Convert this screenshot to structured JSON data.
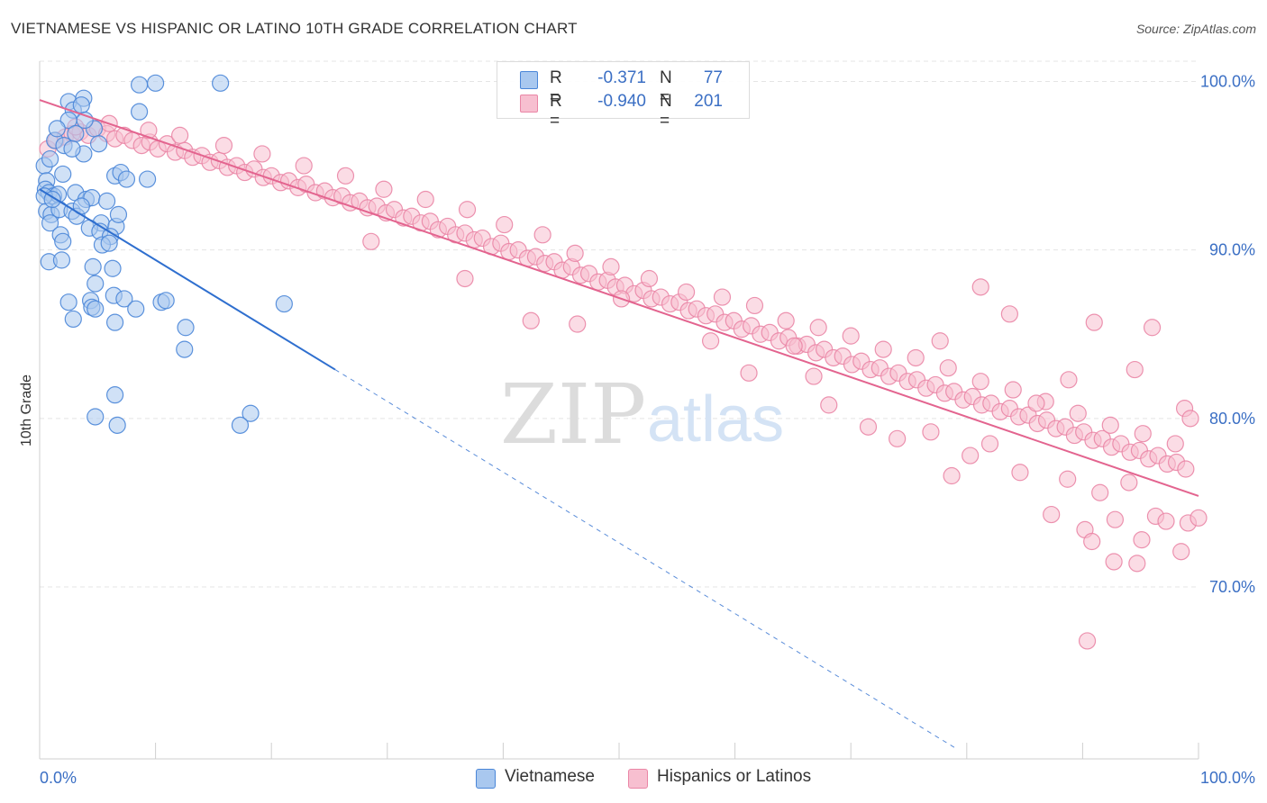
{
  "header": {
    "title": "VIETNAMESE VS HISPANIC OR LATINO 10TH GRADE CORRELATION CHART",
    "source": "Source: ZipAtlas.com"
  },
  "watermark": {
    "zip": "ZIP",
    "atlas": "atlas"
  },
  "colors": {
    "blue_fill": "#a9c8ef",
    "blue_stroke": "#4a86d8",
    "blue_line": "#2f6fcf",
    "pink_fill": "#f7bfd0",
    "pink_stroke": "#ea86a6",
    "pink_line": "#e3648f",
    "tick_label": "#3b6fc4",
    "grid": "#e4e4e4"
  },
  "legend_top": {
    "rows": [
      {
        "r_label": "R =",
        "r_value": "-0.371",
        "n_label": "N =",
        "n_value": "77"
      },
      {
        "r_label": "R =",
        "r_value": "-0.940",
        "n_label": "N =",
        "n_value": "201"
      }
    ]
  },
  "legend_bottom": {
    "items": [
      "Vietnamese",
      "Hispanics or Latinos"
    ]
  },
  "chart_data": {
    "type": "scatter",
    "title": "VIETNAMESE VS HISPANIC OR LATINO 10TH GRADE CORRELATION CHART",
    "xlabel": "",
    "ylabel": "10th Grade",
    "xlim": [
      0,
      100
    ],
    "ylim": [
      59.8,
      101.2
    ],
    "x_tick_labels": [
      "0.0%",
      "100.0%"
    ],
    "y_ticks": [
      70,
      80,
      90,
      100
    ],
    "y_tick_labels": [
      "70.0%",
      "80.0%",
      "90.0%",
      "100.0%"
    ],
    "grid": true,
    "legend_position": "top-center",
    "series": [
      {
        "name": "Vietnamese",
        "r": -0.371,
        "n": 77,
        "trendline": {
          "x": [
            0,
            25.5
          ],
          "y": [
            93.6,
            82.9
          ],
          "dashed_extension_to_x": 79
        },
        "points": [
          [
            2.5,
            98.8
          ],
          [
            3.8,
            99.0
          ],
          [
            2.9,
            98.3
          ],
          [
            3.6,
            98.6
          ],
          [
            2.5,
            97.7
          ],
          [
            4.7,
            97.2
          ],
          [
            1.3,
            96.5
          ],
          [
            2.1,
            96.2
          ],
          [
            3.8,
            95.7
          ],
          [
            0.4,
            95.0
          ],
          [
            0.6,
            94.1
          ],
          [
            2.0,
            94.5
          ],
          [
            6.5,
            94.4
          ],
          [
            7.0,
            94.6
          ],
          [
            9.3,
            94.2
          ],
          [
            0.5,
            93.6
          ],
          [
            0.8,
            93.4
          ],
          [
            1.2,
            93.2
          ],
          [
            1.6,
            93.3
          ],
          [
            3.1,
            93.4
          ],
          [
            4.0,
            93.0
          ],
          [
            4.5,
            93.1
          ],
          [
            5.8,
            92.9
          ],
          [
            0.6,
            92.3
          ],
          [
            1.0,
            92.1
          ],
          [
            1.7,
            92.4
          ],
          [
            2.8,
            92.3
          ],
          [
            3.2,
            92.0
          ],
          [
            5.3,
            91.6
          ],
          [
            6.6,
            91.4
          ],
          [
            0.9,
            91.6
          ],
          [
            4.3,
            91.3
          ],
          [
            5.2,
            91.1
          ],
          [
            1.8,
            90.9
          ],
          [
            2.0,
            90.5
          ],
          [
            6.1,
            90.8
          ],
          [
            5.4,
            90.3
          ],
          [
            6.0,
            90.4
          ],
          [
            0.8,
            89.3
          ],
          [
            1.9,
            89.4
          ],
          [
            4.6,
            89.0
          ],
          [
            6.3,
            88.9
          ],
          [
            4.8,
            88.0
          ],
          [
            6.4,
            87.3
          ],
          [
            2.5,
            86.9
          ],
          [
            4.4,
            87.0
          ],
          [
            7.3,
            87.1
          ],
          [
            10.5,
            86.9
          ],
          [
            10.9,
            87.0
          ],
          [
            4.5,
            86.6
          ],
          [
            4.8,
            86.5
          ],
          [
            2.9,
            85.9
          ],
          [
            6.5,
            85.7
          ],
          [
            8.3,
            86.5
          ],
          [
            12.6,
            85.4
          ],
          [
            12.5,
            84.1
          ],
          [
            21.1,
            86.8
          ],
          [
            6.5,
            81.4
          ],
          [
            4.8,
            80.1
          ],
          [
            6.7,
            79.6
          ],
          [
            18.2,
            80.3
          ],
          [
            17.3,
            79.6
          ],
          [
            8.6,
            99.8
          ],
          [
            10.0,
            99.9
          ],
          [
            15.6,
            99.9
          ],
          [
            8.6,
            98.2
          ],
          [
            3.9,
            97.7
          ],
          [
            1.5,
            97.2
          ],
          [
            3.1,
            96.9
          ],
          [
            5.1,
            96.3
          ],
          [
            2.8,
            96.0
          ],
          [
            0.9,
            95.4
          ],
          [
            7.5,
            94.2
          ],
          [
            0.4,
            93.2
          ],
          [
            1.1,
            93.0
          ],
          [
            3.6,
            92.6
          ],
          [
            6.8,
            92.1
          ]
        ]
      },
      {
        "name": "Hispanics or Latinos",
        "r": -0.94,
        "n": 201,
        "trendline": {
          "x": [
            0,
            100
          ],
          "y": [
            98.9,
            75.4
          ]
        },
        "points": [
          [
            0.7,
            96.0
          ],
          [
            1.4,
            96.5
          ],
          [
            2.2,
            96.7
          ],
          [
            2.8,
            96.9
          ],
          [
            3.5,
            97.0
          ],
          [
            4.2,
            96.8
          ],
          [
            5.0,
            97.2
          ],
          [
            5.8,
            96.9
          ],
          [
            6.5,
            96.6
          ],
          [
            7.3,
            96.8
          ],
          [
            8.0,
            96.5
          ],
          [
            8.8,
            96.2
          ],
          [
            9.5,
            96.4
          ],
          [
            10.2,
            96.0
          ],
          [
            11.0,
            96.3
          ],
          [
            11.7,
            95.8
          ],
          [
            12.5,
            95.9
          ],
          [
            13.2,
            95.5
          ],
          [
            14.0,
            95.6
          ],
          [
            14.7,
            95.2
          ],
          [
            15.5,
            95.3
          ],
          [
            16.2,
            94.9
          ],
          [
            17.0,
            95.0
          ],
          [
            17.7,
            94.6
          ],
          [
            18.5,
            94.8
          ],
          [
            19.3,
            94.3
          ],
          [
            20.0,
            94.4
          ],
          [
            20.8,
            94.0
          ],
          [
            21.5,
            94.1
          ],
          [
            22.3,
            93.7
          ],
          [
            23.0,
            93.9
          ],
          [
            23.8,
            93.4
          ],
          [
            24.6,
            93.5
          ],
          [
            25.3,
            93.1
          ],
          [
            26.1,
            93.2
          ],
          [
            26.8,
            92.8
          ],
          [
            27.6,
            92.9
          ],
          [
            28.3,
            92.5
          ],
          [
            29.1,
            92.6
          ],
          [
            29.9,
            92.2
          ],
          [
            30.6,
            92.4
          ],
          [
            31.4,
            91.9
          ],
          [
            32.1,
            92.0
          ],
          [
            32.9,
            91.6
          ],
          [
            33.7,
            91.7
          ],
          [
            34.4,
            91.2
          ],
          [
            35.2,
            91.4
          ],
          [
            35.9,
            90.9
          ],
          [
            36.7,
            91.0
          ],
          [
            37.5,
            90.6
          ],
          [
            38.2,
            90.7
          ],
          [
            39.0,
            90.2
          ],
          [
            39.8,
            90.4
          ],
          [
            40.5,
            89.9
          ],
          [
            41.3,
            90.0
          ],
          [
            42.1,
            89.5
          ],
          [
            42.8,
            89.6
          ],
          [
            43.6,
            89.2
          ],
          [
            44.4,
            89.3
          ],
          [
            45.1,
            88.8
          ],
          [
            45.9,
            89.0
          ],
          [
            46.7,
            88.5
          ],
          [
            47.4,
            88.6
          ],
          [
            48.2,
            88.1
          ],
          [
            49.0,
            88.2
          ],
          [
            49.7,
            87.8
          ],
          [
            50.5,
            87.9
          ],
          [
            51.3,
            87.4
          ],
          [
            52.1,
            87.6
          ],
          [
            52.8,
            87.1
          ],
          [
            53.6,
            87.2
          ],
          [
            54.4,
            86.8
          ],
          [
            55.2,
            86.9
          ],
          [
            56.0,
            86.4
          ],
          [
            56.7,
            86.5
          ],
          [
            57.5,
            86.1
          ],
          [
            58.3,
            86.2
          ],
          [
            59.1,
            85.7
          ],
          [
            59.9,
            85.8
          ],
          [
            60.6,
            85.3
          ],
          [
            61.4,
            85.5
          ],
          [
            62.2,
            85.0
          ],
          [
            63.0,
            85.1
          ],
          [
            63.8,
            84.6
          ],
          [
            64.6,
            84.8
          ],
          [
            65.4,
            84.3
          ],
          [
            66.2,
            84.4
          ],
          [
            67.0,
            83.9
          ],
          [
            67.7,
            84.1
          ],
          [
            68.5,
            83.6
          ],
          [
            69.3,
            83.7
          ],
          [
            70.1,
            83.2
          ],
          [
            70.9,
            83.4
          ],
          [
            71.7,
            82.9
          ],
          [
            72.5,
            83.0
          ],
          [
            73.3,
            82.5
          ],
          [
            74.1,
            82.7
          ],
          [
            74.9,
            82.2
          ],
          [
            75.7,
            82.3
          ],
          [
            76.5,
            81.8
          ],
          [
            77.3,
            82.0
          ],
          [
            78.1,
            81.5
          ],
          [
            78.9,
            81.6
          ],
          [
            79.7,
            81.1
          ],
          [
            80.5,
            81.3
          ],
          [
            81.3,
            80.8
          ],
          [
            82.1,
            80.9
          ],
          [
            82.9,
            80.4
          ],
          [
            83.7,
            80.6
          ],
          [
            84.5,
            80.1
          ],
          [
            85.3,
            80.2
          ],
          [
            86.1,
            79.7
          ],
          [
            86.9,
            79.9
          ],
          [
            87.7,
            79.4
          ],
          [
            88.5,
            79.5
          ],
          [
            89.3,
            79.0
          ],
          [
            90.1,
            79.2
          ],
          [
            90.9,
            78.7
          ],
          [
            91.7,
            78.8
          ],
          [
            92.5,
            78.3
          ],
          [
            93.3,
            78.5
          ],
          [
            94.1,
            78.0
          ],
          [
            94.9,
            78.1
          ],
          [
            95.7,
            77.6
          ],
          [
            96.5,
            77.8
          ],
          [
            97.3,
            77.3
          ],
          [
            98.1,
            77.4
          ],
          [
            98.9,
            77.0
          ],
          [
            3.1,
            97.3
          ],
          [
            6.0,
            97.5
          ],
          [
            9.4,
            97.1
          ],
          [
            12.1,
            96.8
          ],
          [
            15.9,
            96.2
          ],
          [
            19.2,
            95.7
          ],
          [
            22.8,
            95.0
          ],
          [
            26.4,
            94.4
          ],
          [
            29.7,
            93.6
          ],
          [
            33.3,
            93.0
          ],
          [
            36.9,
            92.4
          ],
          [
            40.1,
            91.5
          ],
          [
            43.4,
            90.9
          ],
          [
            46.2,
            89.8
          ],
          [
            49.3,
            89.0
          ],
          [
            52.6,
            88.3
          ],
          [
            55.8,
            87.5
          ],
          [
            58.9,
            87.2
          ],
          [
            61.7,
            86.7
          ],
          [
            64.4,
            85.8
          ],
          [
            67.2,
            85.4
          ],
          [
            70.0,
            84.9
          ],
          [
            72.8,
            84.1
          ],
          [
            75.6,
            83.6
          ],
          [
            78.4,
            83.0
          ],
          [
            81.2,
            82.2
          ],
          [
            84.0,
            81.7
          ],
          [
            86.8,
            81.0
          ],
          [
            89.6,
            80.3
          ],
          [
            92.4,
            79.6
          ],
          [
            95.2,
            79.1
          ],
          [
            98.0,
            78.5
          ],
          [
            28.6,
            90.5
          ],
          [
            36.7,
            88.3
          ],
          [
            42.4,
            85.8
          ],
          [
            46.4,
            85.6
          ],
          [
            50.2,
            87.1
          ],
          [
            57.9,
            84.6
          ],
          [
            61.2,
            82.7
          ],
          [
            65.1,
            84.3
          ],
          [
            66.8,
            82.5
          ],
          [
            68.1,
            80.8
          ],
          [
            71.5,
            79.5
          ],
          [
            74.0,
            78.8
          ],
          [
            76.9,
            79.2
          ],
          [
            78.7,
            76.6
          ],
          [
            80.3,
            77.8
          ],
          [
            82.0,
            78.5
          ],
          [
            84.6,
            76.8
          ],
          [
            86.0,
            80.9
          ],
          [
            87.3,
            74.3
          ],
          [
            88.7,
            76.4
          ],
          [
            90.2,
            73.4
          ],
          [
            91.5,
            75.6
          ],
          [
            92.8,
            74.0
          ],
          [
            94.0,
            76.2
          ],
          [
            95.1,
            72.8
          ],
          [
            96.3,
            74.2
          ],
          [
            97.2,
            73.9
          ],
          [
            98.5,
            72.1
          ],
          [
            99.1,
            73.8
          ],
          [
            100.0,
            74.1
          ],
          [
            91.0,
            85.7
          ],
          [
            96.0,
            85.4
          ],
          [
            83.7,
            86.2
          ],
          [
            77.7,
            84.6
          ],
          [
            81.2,
            87.8
          ],
          [
            94.5,
            82.9
          ],
          [
            98.8,
            80.6
          ],
          [
            99.3,
            80.0
          ],
          [
            90.4,
            66.8
          ],
          [
            94.7,
            71.4
          ],
          [
            92.7,
            71.5
          ],
          [
            90.8,
            72.7
          ],
          [
            88.8,
            82.3
          ]
        ]
      }
    ]
  }
}
